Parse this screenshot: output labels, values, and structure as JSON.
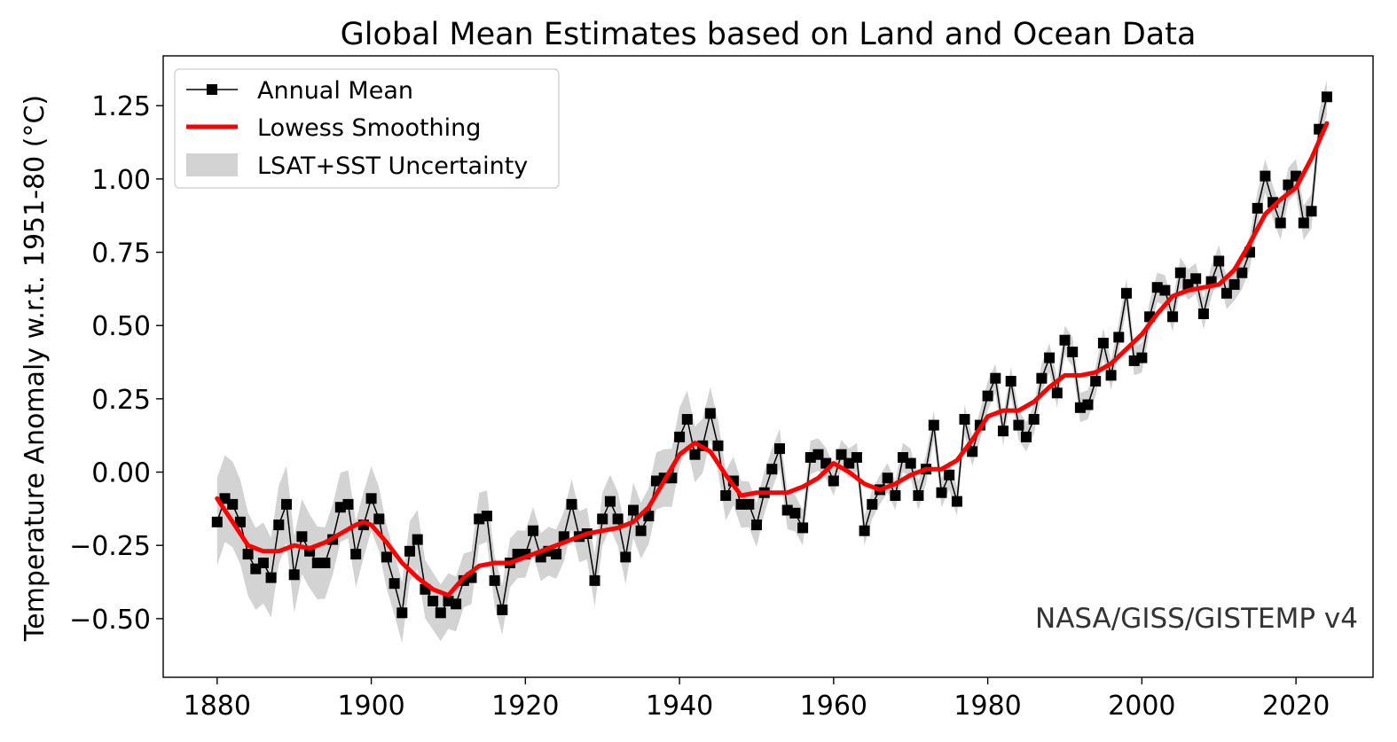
{
  "chart_data": {
    "type": "line",
    "title": "Global Mean Estimates based on Land and Ocean Data",
    "xlabel": "",
    "ylabel": "Temperature Anomaly w.r.t. 1951-80 (°C)",
    "xlim": [
      1873,
      2030
    ],
    "ylim": [
      -0.7,
      1.42
    ],
    "xticks": [
      1880,
      1900,
      1920,
      1940,
      1960,
      1980,
      2000,
      2020
    ],
    "yticks": [
      -0.5,
      -0.25,
      0.0,
      0.25,
      0.5,
      0.75,
      1.0,
      1.25
    ],
    "ytick_labels": [
      "−0.50",
      "−0.25",
      "0.00",
      "0.25",
      "0.50",
      "0.75",
      "1.00",
      "1.25"
    ],
    "grid": false,
    "legend_position": "top-left",
    "annotation": "NASA/GISS/GISTEMP v4",
    "uncertainty_halfwidth": {
      "1880": 0.15,
      "1900": 0.11,
      "1920": 0.08,
      "1940": 0.1,
      "1960": 0.05,
      "1980": 0.05,
      "2000": 0.05,
      "2024": 0.06
    },
    "x_start": 1880,
    "series": [
      {
        "name": "Annual Mean",
        "color": "#000000",
        "marker": "square",
        "values": [
          -0.17,
          -0.09,
          -0.11,
          -0.17,
          -0.28,
          -0.33,
          -0.31,
          -0.36,
          -0.18,
          -0.11,
          -0.35,
          -0.22,
          -0.27,
          -0.31,
          -0.31,
          -0.23,
          -0.12,
          -0.11,
          -0.28,
          -0.18,
          -0.09,
          -0.16,
          -0.29,
          -0.38,
          -0.48,
          -0.27,
          -0.23,
          -0.4,
          -0.44,
          -0.48,
          -0.44,
          -0.45,
          -0.37,
          -0.36,
          -0.16,
          -0.15,
          -0.37,
          -0.47,
          -0.31,
          -0.28,
          -0.28,
          -0.2,
          -0.29,
          -0.27,
          -0.28,
          -0.22,
          -0.11,
          -0.22,
          -0.21,
          -0.37,
          -0.16,
          -0.1,
          -0.16,
          -0.29,
          -0.13,
          -0.2,
          -0.15,
          -0.03,
          -0.02,
          -0.02,
          0.12,
          0.18,
          0.06,
          0.09,
          0.2,
          0.09,
          -0.08,
          -0.03,
          -0.11,
          -0.11,
          -0.18,
          -0.07,
          0.01,
          0.08,
          -0.13,
          -0.14,
          -0.19,
          0.05,
          0.06,
          0.03,
          -0.03,
          0.06,
          0.03,
          0.05,
          -0.2,
          -0.11,
          -0.06,
          -0.02,
          -0.08,
          0.05,
          0.03,
          -0.08,
          0.01,
          0.16,
          -0.07,
          -0.01,
          -0.1,
          0.18,
          0.07,
          0.16,
          0.26,
          0.32,
          0.14,
          0.31,
          0.16,
          0.12,
          0.18,
          0.32,
          0.39,
          0.27,
          0.45,
          0.41,
          0.22,
          0.23,
          0.31,
          0.44,
          0.33,
          0.46,
          0.61,
          0.38,
          0.39,
          0.53,
          0.63,
          0.62,
          0.53,
          0.68,
          0.64,
          0.66,
          0.54,
          0.65,
          0.72,
          0.61,
          0.64,
          0.68,
          0.75,
          0.9,
          1.01,
          0.92,
          0.85,
          0.98,
          1.01,
          0.85,
          0.89,
          1.17,
          1.28
        ]
      },
      {
        "name": "Lowess Smoothing",
        "color": "#ff0000",
        "points": [
          [
            1880,
            -0.09
          ],
          [
            1882,
            -0.17
          ],
          [
            1884,
            -0.25
          ],
          [
            1886,
            -0.27
          ],
          [
            1888,
            -0.27
          ],
          [
            1890,
            -0.25
          ],
          [
            1892,
            -0.26
          ],
          [
            1894,
            -0.24
          ],
          [
            1896,
            -0.21
          ],
          [
            1898,
            -0.18
          ],
          [
            1899,
            -0.17
          ],
          [
            1900,
            -0.18
          ],
          [
            1902,
            -0.24
          ],
          [
            1904,
            -0.31
          ],
          [
            1906,
            -0.36
          ],
          [
            1908,
            -0.4
          ],
          [
            1910,
            -0.42
          ],
          [
            1912,
            -0.36
          ],
          [
            1914,
            -0.32
          ],
          [
            1916,
            -0.31
          ],
          [
            1918,
            -0.31
          ],
          [
            1920,
            -0.29
          ],
          [
            1922,
            -0.27
          ],
          [
            1924,
            -0.25
          ],
          [
            1926,
            -0.23
          ],
          [
            1928,
            -0.21
          ],
          [
            1930,
            -0.2
          ],
          [
            1932,
            -0.19
          ],
          [
            1934,
            -0.17
          ],
          [
            1936,
            -0.12
          ],
          [
            1938,
            -0.03
          ],
          [
            1940,
            0.06
          ],
          [
            1942,
            0.1
          ],
          [
            1944,
            0.07
          ],
          [
            1946,
            -0.01
          ],
          [
            1948,
            -0.08
          ],
          [
            1950,
            -0.07
          ],
          [
            1952,
            -0.07
          ],
          [
            1954,
            -0.07
          ],
          [
            1956,
            -0.05
          ],
          [
            1958,
            -0.02
          ],
          [
            1960,
            0.03
          ],
          [
            1962,
            0.0
          ],
          [
            1964,
            -0.04
          ],
          [
            1966,
            -0.06
          ],
          [
            1968,
            -0.04
          ],
          [
            1970,
            -0.01
          ],
          [
            1972,
            0.01
          ],
          [
            1974,
            0.01
          ],
          [
            1976,
            0.04
          ],
          [
            1978,
            0.11
          ],
          [
            1980,
            0.19
          ],
          [
            1982,
            0.21
          ],
          [
            1984,
            0.21
          ],
          [
            1986,
            0.24
          ],
          [
            1988,
            0.29
          ],
          [
            1990,
            0.33
          ],
          [
            1992,
            0.33
          ],
          [
            1994,
            0.34
          ],
          [
            1996,
            0.37
          ],
          [
            1998,
            0.42
          ],
          [
            2000,
            0.47
          ],
          [
            2002,
            0.54
          ],
          [
            2004,
            0.6
          ],
          [
            2006,
            0.62
          ],
          [
            2008,
            0.63
          ],
          [
            2010,
            0.64
          ],
          [
            2012,
            0.69
          ],
          [
            2014,
            0.78
          ],
          [
            2016,
            0.88
          ],
          [
            2018,
            0.93
          ],
          [
            2020,
            0.97
          ],
          [
            2022,
            1.07
          ],
          [
            2024,
            1.19
          ]
        ]
      },
      {
        "name": "LSAT+SST Uncertainty",
        "color": "#d3d3d3"
      }
    ]
  }
}
